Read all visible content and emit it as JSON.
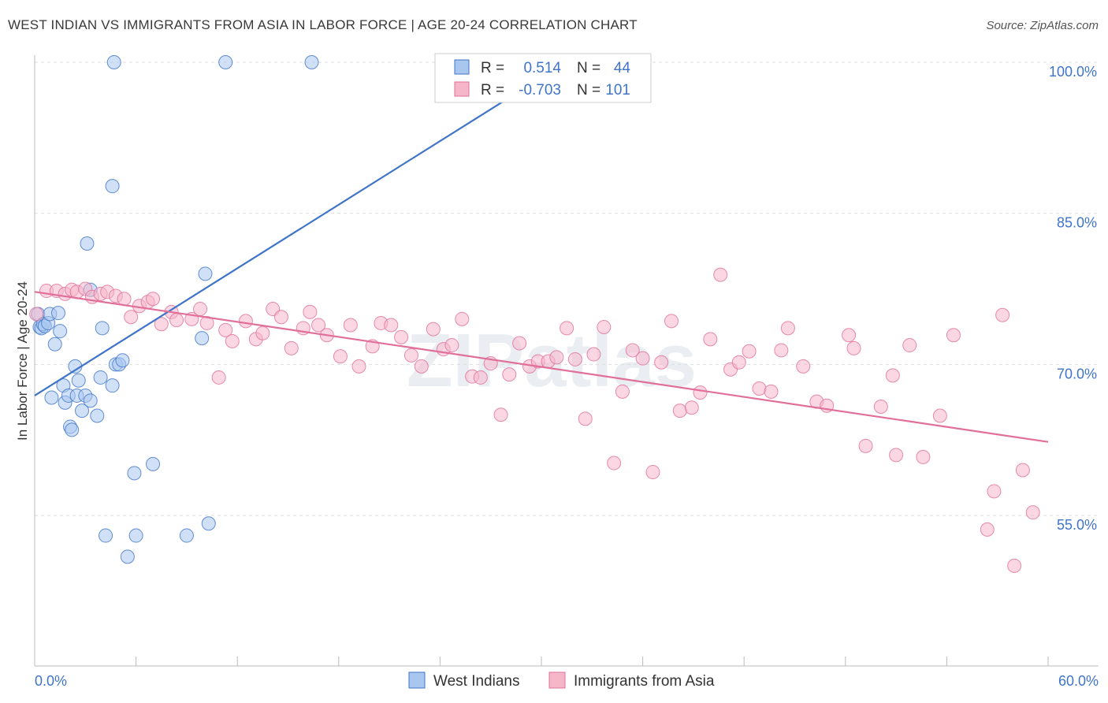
{
  "title": "WEST INDIAN VS IMMIGRANTS FROM ASIA IN LABOR FORCE | AGE 20-24 CORRELATION CHART",
  "source": "Source: ZipAtlas.com",
  "watermark": "ZIPatlas",
  "chart_data": {
    "type": "scatter",
    "ylabel": "In Labor Force | Age 20-24",
    "xlim": [
      0,
      60
    ],
    "ylim": [
      40,
      102
    ],
    "x_tick_labels": [
      "0.0%",
      "60.0%"
    ],
    "y_ticks": [
      55,
      70,
      85,
      100
    ],
    "y_tick_labels": [
      "55.0%",
      "70.0%",
      "85.0%",
      "100.0%"
    ],
    "grid": true,
    "legend_placement": "top-center",
    "stats": [
      {
        "r_label": "R =",
        "r": "0.514",
        "n_label": "N =",
        "n": "44"
      },
      {
        "r_label": "R =",
        "r": "-0.703",
        "n_label": "N =",
        "n": "101"
      }
    ],
    "series": [
      {
        "name": "West Indians",
        "color": "#3f74c9",
        "fill": "#a9c6ef",
        "trend": [
          [
            0,
            66.9
          ],
          [
            32,
            100.6
          ]
        ],
        "points": [
          [
            0.2,
            75.0
          ],
          [
            0.3,
            73.7
          ],
          [
            0.4,
            73.6
          ],
          [
            0.5,
            74.0
          ],
          [
            0.6,
            73.8
          ],
          [
            0.8,
            74.1
          ],
          [
            0.9,
            75.0
          ],
          [
            1.0,
            66.7
          ],
          [
            1.2,
            72.0
          ],
          [
            1.4,
            75.1
          ],
          [
            1.5,
            73.3
          ],
          [
            1.7,
            67.9
          ],
          [
            1.8,
            66.2
          ],
          [
            2.0,
            66.9
          ],
          [
            2.1,
            63.8
          ],
          [
            2.2,
            63.5
          ],
          [
            2.4,
            69.8
          ],
          [
            2.5,
            66.9
          ],
          [
            2.6,
            68.4
          ],
          [
            2.8,
            65.4
          ],
          [
            3.0,
            66.9
          ],
          [
            3.3,
            66.4
          ],
          [
            3.3,
            77.4
          ],
          [
            3.7,
            64.9
          ],
          [
            3.9,
            68.7
          ],
          [
            4.0,
            73.6
          ],
          [
            4.6,
            87.7
          ],
          [
            4.6,
            67.9
          ],
          [
            4.7,
            100.0
          ],
          [
            4.8,
            70.0
          ],
          [
            5.0,
            70.0
          ],
          [
            5.2,
            70.4
          ],
          [
            5.5,
            50.9
          ],
          [
            5.9,
            59.2
          ],
          [
            3.1,
            82.0
          ],
          [
            7.0,
            60.1
          ],
          [
            9.0,
            53.0
          ],
          [
            9.9,
            72.6
          ],
          [
            10.1,
            79.0
          ],
          [
            10.3,
            54.2
          ],
          [
            11.3,
            100.0
          ],
          [
            16.4,
            100.0
          ],
          [
            6.0,
            53.0
          ],
          [
            4.2,
            53.0
          ]
        ]
      },
      {
        "name": "Immigrants from Asia",
        "color": "#e0709a",
        "fill": "#f6b6ca",
        "trend": [
          [
            0,
            77.2
          ],
          [
            60,
            62.3
          ]
        ],
        "points": [
          [
            0.1,
            75.0
          ],
          [
            0.7,
            77.3
          ],
          [
            1.3,
            77.3
          ],
          [
            1.8,
            77.0
          ],
          [
            2.2,
            77.4
          ],
          [
            2.5,
            77.2
          ],
          [
            3.0,
            77.5
          ],
          [
            3.4,
            76.7
          ],
          [
            3.9,
            77.0
          ],
          [
            4.3,
            77.2
          ],
          [
            4.8,
            76.8
          ],
          [
            5.3,
            76.5
          ],
          [
            5.7,
            74.7
          ],
          [
            6.2,
            75.8
          ],
          [
            6.7,
            76.2
          ],
          [
            7.0,
            76.5
          ],
          [
            7.5,
            74.0
          ],
          [
            8.1,
            75.2
          ],
          [
            8.4,
            74.4
          ],
          [
            9.3,
            74.5
          ],
          [
            9.8,
            75.5
          ],
          [
            10.2,
            74.1
          ],
          [
            10.9,
            68.7
          ],
          [
            11.3,
            73.4
          ],
          [
            11.7,
            72.3
          ],
          [
            12.5,
            74.3
          ],
          [
            13.1,
            72.5
          ],
          [
            13.5,
            73.1
          ],
          [
            14.1,
            75.5
          ],
          [
            14.6,
            74.7
          ],
          [
            15.2,
            71.6
          ],
          [
            15.9,
            73.6
          ],
          [
            16.3,
            75.2
          ],
          [
            16.8,
            73.9
          ],
          [
            17.3,
            72.9
          ],
          [
            18.1,
            70.8
          ],
          [
            18.7,
            73.9
          ],
          [
            19.2,
            69.8
          ],
          [
            20.0,
            71.8
          ],
          [
            20.5,
            74.1
          ],
          [
            21.1,
            73.9
          ],
          [
            21.7,
            72.7
          ],
          [
            22.3,
            70.9
          ],
          [
            22.9,
            69.8
          ],
          [
            23.6,
            73.5
          ],
          [
            24.2,
            71.5
          ],
          [
            24.7,
            71.9
          ],
          [
            25.3,
            74.5
          ],
          [
            25.9,
            68.8
          ],
          [
            26.4,
            68.7
          ],
          [
            27.0,
            70.1
          ],
          [
            27.6,
            65.0
          ],
          [
            28.1,
            69.0
          ],
          [
            28.7,
            72.1
          ],
          [
            29.3,
            69.8
          ],
          [
            29.8,
            70.3
          ],
          [
            30.4,
            70.3
          ],
          [
            30.9,
            70.7
          ],
          [
            31.5,
            73.6
          ],
          [
            32.0,
            70.5
          ],
          [
            32.6,
            64.6
          ],
          [
            33.1,
            71.0
          ],
          [
            33.7,
            73.7
          ],
          [
            34.3,
            60.2
          ],
          [
            34.8,
            67.3
          ],
          [
            35.4,
            71.4
          ],
          [
            36.0,
            70.6
          ],
          [
            36.6,
            59.3
          ],
          [
            37.1,
            70.2
          ],
          [
            37.7,
            74.3
          ],
          [
            38.2,
            65.4
          ],
          [
            38.9,
            65.7
          ],
          [
            39.4,
            67.2
          ],
          [
            40.0,
            72.5
          ],
          [
            40.6,
            78.9
          ],
          [
            41.2,
            69.5
          ],
          [
            41.7,
            70.2
          ],
          [
            42.3,
            71.3
          ],
          [
            42.9,
            67.6
          ],
          [
            43.6,
            67.3
          ],
          [
            44.2,
            71.4
          ],
          [
            44.6,
            73.6
          ],
          [
            45.5,
            69.8
          ],
          [
            46.3,
            66.3
          ],
          [
            46.9,
            65.9
          ],
          [
            48.2,
            72.9
          ],
          [
            48.5,
            71.6
          ],
          [
            49.2,
            61.9
          ],
          [
            50.1,
            65.8
          ],
          [
            50.8,
            68.9
          ],
          [
            51.0,
            61.0
          ],
          [
            51.8,
            71.9
          ],
          [
            52.6,
            60.8
          ],
          [
            53.6,
            64.9
          ],
          [
            54.4,
            72.9
          ],
          [
            56.4,
            53.6
          ],
          [
            56.8,
            57.4
          ],
          [
            58.0,
            50.0
          ],
          [
            58.5,
            59.5
          ],
          [
            57.3,
            74.9
          ],
          [
            59.1,
            55.3
          ]
        ]
      }
    ]
  }
}
